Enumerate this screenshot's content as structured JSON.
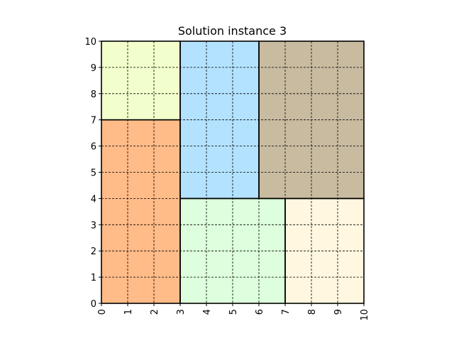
{
  "chart_data": {
    "type": "rectangle-packing",
    "title": "Solution instance 3",
    "xlim": [
      0,
      10
    ],
    "ylim": [
      0,
      10
    ],
    "xticks": [
      "0",
      "1",
      "2",
      "3",
      "4",
      "5",
      "6",
      "7",
      "8",
      "9",
      "10"
    ],
    "yticks": [
      "0",
      "1",
      "2",
      "3",
      "4",
      "5",
      "6",
      "7",
      "8",
      "9",
      "10"
    ],
    "grid": true,
    "grid_style": "dashed",
    "rectangles": [
      {
        "x": 0,
        "y": 0,
        "w": 3,
        "h": 7,
        "color": "#ffbb88"
      },
      {
        "x": 0,
        "y": 7,
        "w": 3,
        "h": 3,
        "color": "#f2ffcc"
      },
      {
        "x": 3,
        "y": 4,
        "w": 3,
        "h": 6,
        "color": "#b3e2ff"
      },
      {
        "x": 6,
        "y": 4,
        "w": 4,
        "h": 6,
        "color": "#c8bba0"
      },
      {
        "x": 3,
        "y": 0,
        "w": 4,
        "h": 4,
        "color": "#ddffdd"
      },
      {
        "x": 7,
        "y": 0,
        "w": 3,
        "h": 4,
        "color": "#fff7e0"
      }
    ]
  }
}
